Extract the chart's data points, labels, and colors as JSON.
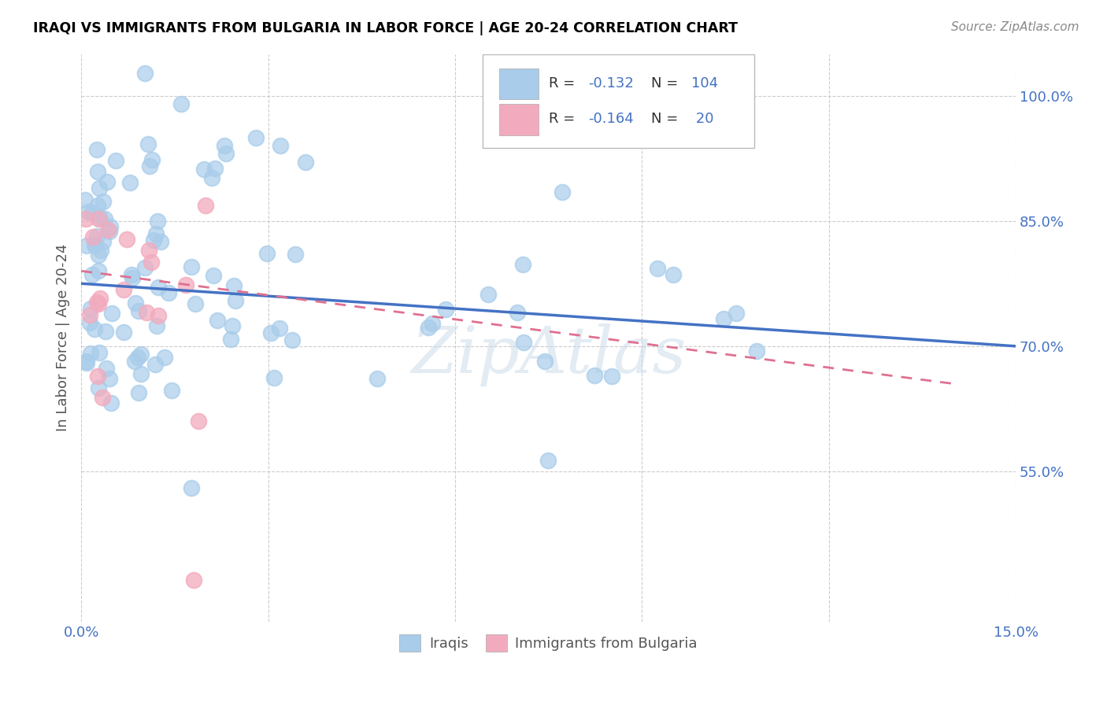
{
  "title": "IRAQI VS IMMIGRANTS FROM BULGARIA IN LABOR FORCE | AGE 20-24 CORRELATION CHART",
  "source": "Source: ZipAtlas.com",
  "ylabel": "In Labor Force | Age 20-24",
  "xlim": [
    0.0,
    0.15
  ],
  "ylim": [
    0.37,
    1.05
  ],
  "x_ticks": [
    0.0,
    0.03,
    0.06,
    0.09,
    0.12,
    0.15
  ],
  "x_tick_labels": [
    "0.0%",
    "",
    "",
    "",
    "",
    "15.0%"
  ],
  "y_ticks": [
    0.55,
    0.7,
    0.85,
    1.0
  ],
  "y_tick_labels": [
    "55.0%",
    "70.0%",
    "85.0%",
    "100.0%"
  ],
  "legend_R1": "-0.132",
  "legend_N1": "104",
  "legend_R2": "-0.164",
  "legend_N2": "20",
  "blue_color": "#A8CCEA",
  "pink_color": "#F2ABBE",
  "line_blue": "#4472C4",
  "line_pink": "#E07090",
  "blue_label_color": "#4472C4",
  "tick_color": "#4472C4",
  "title_color": "#000000",
  "source_color": "#888888",
  "ylabel_color": "#555555",
  "watermark_color": "#C8D8E8",
  "iraq_line_y0": 0.775,
  "iraq_line_y1": 0.7,
  "bulg_line_y0": 0.79,
  "bulg_line_y1": 0.655,
  "bulg_line_x1": 0.14
}
